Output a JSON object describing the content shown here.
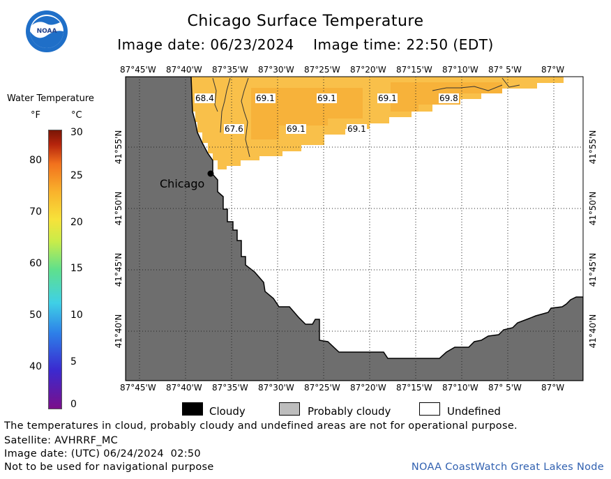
{
  "header": {
    "title": "Chicago Surface Temperature",
    "image_date_time": "Image date: 06/23/2024    Image time: 22:50 (EDT)"
  },
  "logo": {
    "text": "NOAA",
    "icon": "noaa-logo-icon"
  },
  "legend": {
    "title": "Water Temperature",
    "unit_f": "°F",
    "unit_c": "°C",
    "fahrenheit_ticks": [
      "80",
      "70",
      "60",
      "50",
      "40"
    ],
    "celsius_ticks": [
      "30",
      "25",
      "20",
      "15",
      "10",
      "5",
      "0"
    ]
  },
  "map": {
    "lon_labels": [
      "87°45'W",
      "87°40'W",
      "87°35'W",
      "87°30'W",
      "87°25'W",
      "87°20'W",
      "87°15'W",
      "87°10'W",
      "87° 5'W",
      "87°W"
    ],
    "lat_labels": [
      "41°55'N",
      "41°50'N",
      "41°45'N",
      "41°40'N"
    ],
    "city_label": "Chicago",
    "temperature_labels": [
      "68.4",
      "69.1",
      "69.1",
      "69.1",
      "69.8",
      "67.6",
      "69.1",
      "69.1"
    ],
    "colors": {
      "land": "#6e6e6e",
      "water_warm": "#f9c04a",
      "water_warmer": "#f7b23a",
      "undefined": "#ffffff"
    }
  },
  "key": {
    "cloudy": "Cloudy",
    "probably_cloudy": "Probably cloudy",
    "undefined": "Undefined"
  },
  "footer": {
    "note": "The temperatures in cloud, probably cloudy and undefined areas are not for operational purpose.",
    "satellite": "Satellite: AVHRRF_MC",
    "utc_date": "Image date: (UTC) 06/24/2024  02:50",
    "nav_warning": "Not to be used for navigational purpose",
    "credit": "NOAA CoastWatch Great Lakes Node"
  }
}
